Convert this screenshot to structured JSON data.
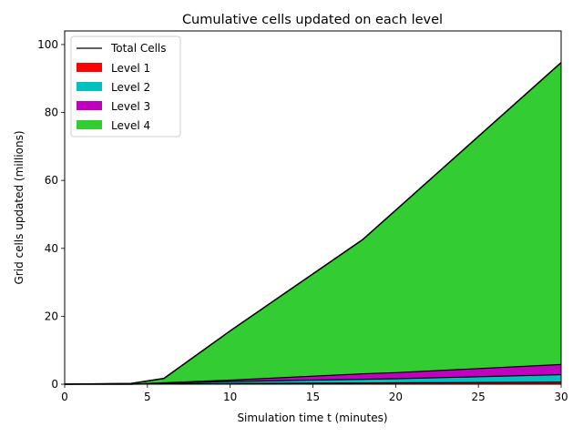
{
  "chart_data": {
    "type": "area",
    "title": "Cumulative cells updated on each level",
    "xlabel": "Simulation time t (minutes)",
    "ylabel": "Grid cells updated (millions)",
    "xlim": [
      0,
      30
    ],
    "ylim": [
      0,
      104
    ],
    "xticks": [
      0,
      5,
      10,
      15,
      20,
      25,
      30
    ],
    "yticks": [
      0,
      20,
      40,
      60,
      80,
      100
    ],
    "stacked": true,
    "grid": false,
    "legend_position": "top-left",
    "x": [
      0,
      4,
      6,
      10,
      18,
      20,
      30
    ],
    "series": [
      {
        "name": "Level 1",
        "color": "#ff0000",
        "values": [
          0.0,
          0.0,
          0.1,
          0.2,
          0.35,
          0.4,
          0.6
        ]
      },
      {
        "name": "Level 2",
        "color": "#00bfbf",
        "values": [
          0.0,
          0.0,
          0.2,
          0.6,
          1.1,
          1.2,
          2.2
        ]
      },
      {
        "name": "Level 3",
        "color": "#bf00bf",
        "values": [
          0.0,
          0.0,
          0.1,
          0.4,
          1.6,
          1.8,
          3.0
        ]
      },
      {
        "name": "Level 4",
        "color": "#33cc33",
        "values": [
          0.0,
          0.2,
          1.3,
          14.5,
          39.5,
          47.8,
          88.9
        ]
      }
    ],
    "total": {
      "name": "Total Cells",
      "color": "#000000",
      "values": [
        0.0,
        0.2,
        1.7,
        15.7,
        42.55,
        51.2,
        94.7
      ]
    }
  }
}
